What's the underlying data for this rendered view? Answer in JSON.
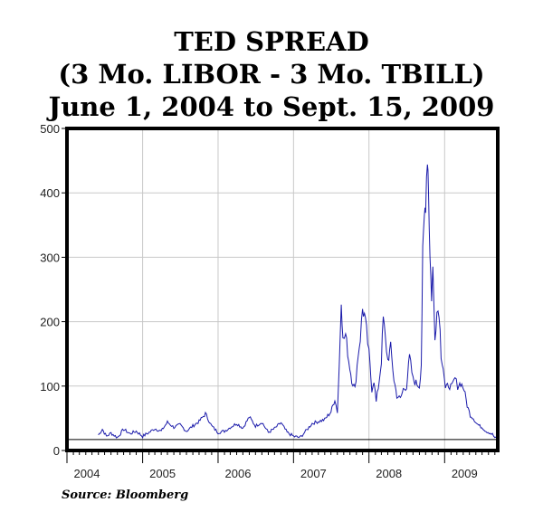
{
  "chart_data": {
    "type": "line",
    "title": "TED SPREAD",
    "subtitle_lines": [
      "(3 Mo. LIBOR - 3 Mo. TBILL)",
      "June 1, 2004 to Sept. 15, 2009"
    ],
    "xlabel": "",
    "ylabel": "",
    "x_tick_labels": [
      "2004",
      "2005",
      "2006",
      "2007",
      "2008",
      "2009"
    ],
    "x_tick_years": [
      2004,
      2005,
      2006,
      2007,
      2008,
      2009
    ],
    "y_ticks": [
      0,
      100,
      200,
      300,
      400,
      500
    ],
    "ylim": [
      0,
      500
    ],
    "xlim": [
      "2004-01-01",
      "2009-09-15"
    ],
    "grid": true,
    "series": [
      {
        "color": "#1a1aaa",
        "points": [
          [
            "2004-06-01",
            24
          ],
          [
            "2004-06-20",
            33
          ],
          [
            "2004-07-10",
            22
          ],
          [
            "2004-08-01",
            27
          ],
          [
            "2004-09-01",
            20
          ],
          [
            "2004-10-01",
            33
          ],
          [
            "2004-11-01",
            26
          ],
          [
            "2004-12-01",
            30
          ],
          [
            "2005-01-01",
            22
          ],
          [
            "2005-02-01",
            28
          ],
          [
            "2005-03-01",
            34
          ],
          [
            "2005-04-01",
            30
          ],
          [
            "2005-05-01",
            44
          ],
          [
            "2005-06-01",
            36
          ],
          [
            "2005-07-01",
            40
          ],
          [
            "2005-08-01",
            30
          ],
          [
            "2005-09-01",
            38
          ],
          [
            "2005-10-01",
            45
          ],
          [
            "2005-11-01",
            57
          ],
          [
            "2005-12-01",
            38
          ],
          [
            "2006-01-01",
            28
          ],
          [
            "2006-02-01",
            30
          ],
          [
            "2006-03-01",
            36
          ],
          [
            "2006-04-01",
            42
          ],
          [
            "2006-05-01",
            35
          ],
          [
            "2006-06-01",
            52
          ],
          [
            "2006-07-01",
            38
          ],
          [
            "2006-08-01",
            44
          ],
          [
            "2006-09-01",
            28
          ],
          [
            "2006-10-01",
            34
          ],
          [
            "2006-11-01",
            43
          ],
          [
            "2006-12-01",
            28
          ],
          [
            "2007-01-01",
            22
          ],
          [
            "2007-02-01",
            20
          ],
          [
            "2007-03-01",
            30
          ],
          [
            "2007-04-01",
            42
          ],
          [
            "2007-05-01",
            45
          ],
          [
            "2007-06-01",
            48
          ],
          [
            "2007-07-01",
            60
          ],
          [
            "2007-07-20",
            80
          ],
          [
            "2007-08-01",
            60
          ],
          [
            "2007-08-10",
            130
          ],
          [
            "2007-08-20",
            240
          ],
          [
            "2007-08-28",
            170
          ],
          [
            "2007-09-10",
            180
          ],
          [
            "2007-09-25",
            140
          ],
          [
            "2007-10-10",
            110
          ],
          [
            "2007-10-25",
            95
          ],
          [
            "2007-11-10",
            150
          ],
          [
            "2007-11-20",
            175
          ],
          [
            "2007-12-01",
            220
          ],
          [
            "2007-12-10",
            210
          ],
          [
            "2007-12-20",
            185
          ],
          [
            "2008-01-01",
            150
          ],
          [
            "2008-01-15",
            95
          ],
          [
            "2008-01-25",
            110
          ],
          [
            "2008-02-05",
            75
          ],
          [
            "2008-02-20",
            110
          ],
          [
            "2008-03-01",
            140
          ],
          [
            "2008-03-10",
            205
          ],
          [
            "2008-03-20",
            175
          ],
          [
            "2008-04-01",
            140
          ],
          [
            "2008-04-15",
            160
          ],
          [
            "2008-05-01",
            110
          ],
          [
            "2008-05-15",
            85
          ],
          [
            "2008-06-01",
            80
          ],
          [
            "2008-06-15",
            95
          ],
          [
            "2008-07-01",
            100
          ],
          [
            "2008-07-15",
            145
          ],
          [
            "2008-08-01",
            110
          ],
          [
            "2008-08-15",
            105
          ],
          [
            "2008-09-01",
            100
          ],
          [
            "2008-09-10",
            135
          ],
          [
            "2008-09-17",
            300
          ],
          [
            "2008-09-25",
            360
          ],
          [
            "2008-10-01",
            390
          ],
          [
            "2008-10-10",
            463
          ],
          [
            "2008-10-15",
            410
          ],
          [
            "2008-10-22",
            300
          ],
          [
            "2008-10-30",
            240
          ],
          [
            "2008-11-05",
            280
          ],
          [
            "2008-11-15",
            180
          ],
          [
            "2008-11-25",
            215
          ],
          [
            "2008-12-05",
            220
          ],
          [
            "2008-12-15",
            150
          ],
          [
            "2008-12-25",
            130
          ],
          [
            "2009-01-05",
            95
          ],
          [
            "2009-01-20",
            102
          ],
          [
            "2009-02-05",
            98
          ],
          [
            "2009-02-20",
            112
          ],
          [
            "2009-03-05",
            100
          ],
          [
            "2009-03-20",
            105
          ],
          [
            "2009-04-05",
            95
          ],
          [
            "2009-04-20",
            70
          ],
          [
            "2009-05-05",
            55
          ],
          [
            "2009-05-20",
            50
          ],
          [
            "2009-06-05",
            42
          ],
          [
            "2009-06-20",
            38
          ],
          [
            "2009-07-05",
            35
          ],
          [
            "2009-07-20",
            30
          ],
          [
            "2009-08-05",
            28
          ],
          [
            "2009-08-20",
            25
          ],
          [
            "2009-09-01",
            20
          ],
          [
            "2009-09-15",
            17
          ]
        ]
      }
    ],
    "reference_line_value": 17,
    "colors": {
      "line": "#1a1aaa",
      "frame": "#000000",
      "grid": "#c8c8c8"
    }
  },
  "source": "Source: Bloomberg"
}
